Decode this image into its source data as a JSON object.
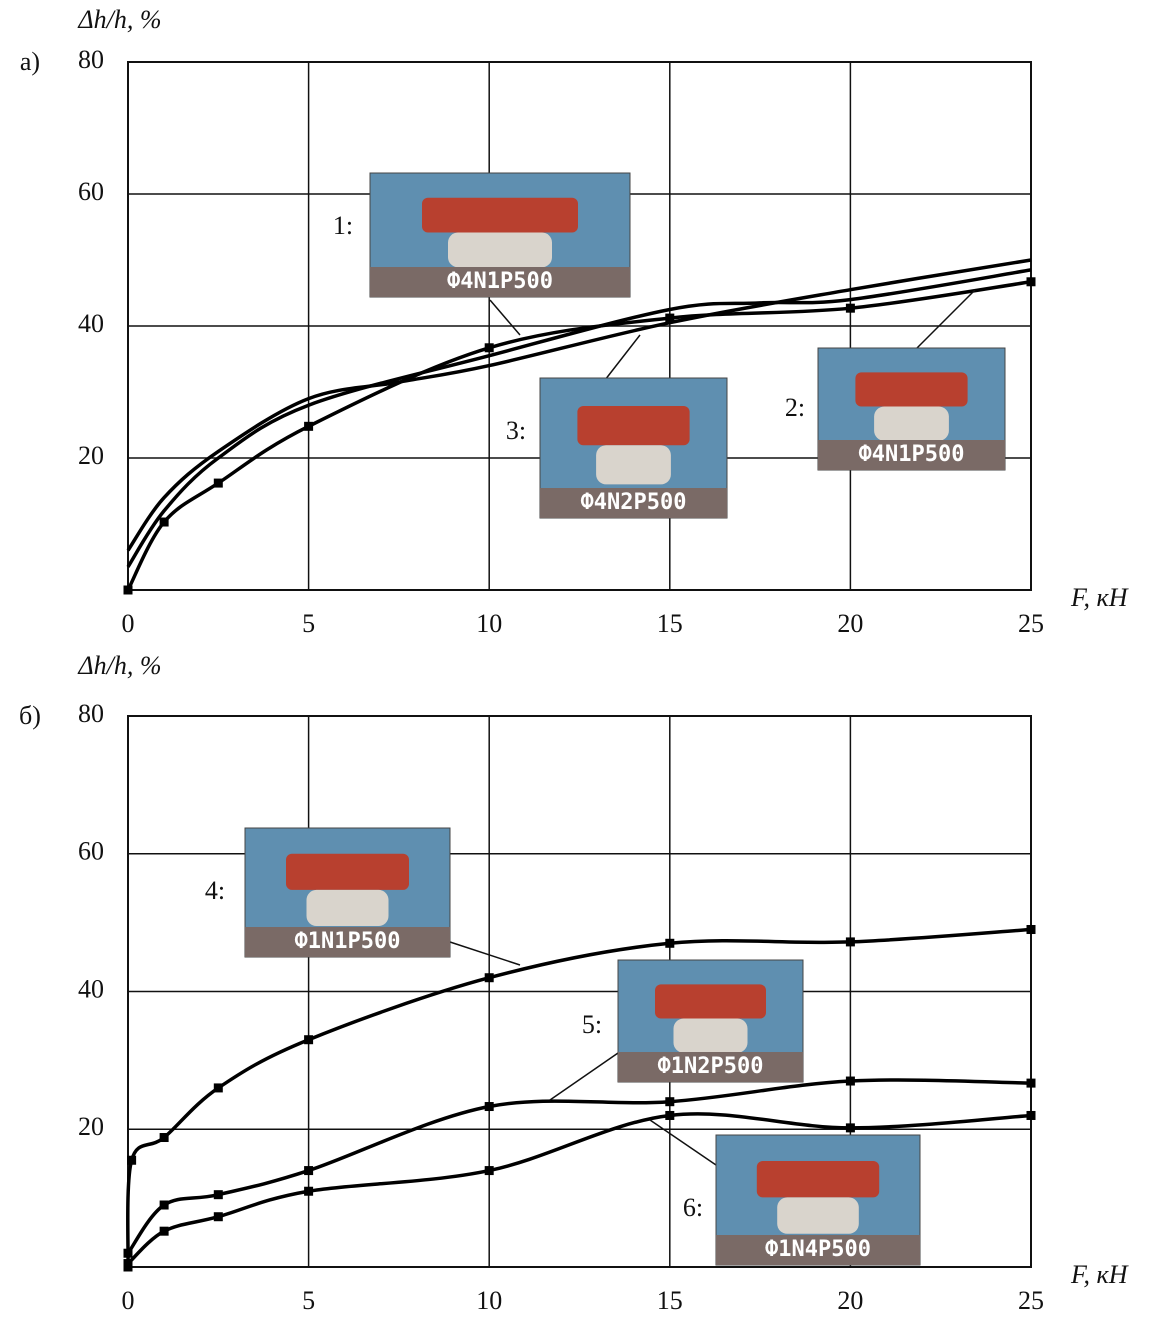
{
  "chart_data": [
    {
      "type": "line",
      "panel_label": "а)",
      "y_label": "Δh/h, %",
      "x_label": "F, кН",
      "xlim": [
        0,
        25
      ],
      "ylim": [
        0,
        80
      ],
      "xticks": [
        0,
        5,
        10,
        15,
        20,
        25
      ],
      "yticks": [
        20,
        40,
        60,
        80
      ],
      "grid": true,
      "series": [
        {
          "name": "1:",
          "caption": "Ф4N1P500",
          "color": "#000000",
          "markers": false,
          "x": [
            0,
            1,
            2.5,
            5,
            7.5,
            10,
            15,
            20,
            25
          ],
          "values": [
            6,
            14,
            21,
            29,
            31.5,
            34,
            40.5,
            45.5,
            50
          ]
        },
        {
          "name": "2:",
          "caption": "Ф4N1P500",
          "color": "#000000",
          "markers": true,
          "x": [
            0,
            1,
            2.5,
            5,
            10,
            15,
            20,
            25
          ],
          "values": [
            0,
            10.3,
            16.2,
            24.8,
            36.7,
            41.2,
            42.7,
            46.7
          ]
        },
        {
          "name": "3:",
          "caption": "Ф4N2P500",
          "color": "#000000",
          "markers": false,
          "x": [
            0,
            1,
            2.5,
            5,
            10,
            15,
            17.5,
            20,
            25
          ],
          "values": [
            3.5,
            12,
            20,
            28,
            35.5,
            42.5,
            43.5,
            44,
            48.5
          ]
        }
      ]
    },
    {
      "type": "line",
      "panel_label": "б)",
      "y_label": "Δh/h, %",
      "x_label": "F, кН",
      "xlim": [
        0,
        25
      ],
      "ylim": [
        0,
        80
      ],
      "xticks": [
        0,
        5,
        10,
        15,
        20,
        25
      ],
      "yticks": [
        20,
        40,
        60,
        80
      ],
      "grid": true,
      "series": [
        {
          "name": "4:",
          "caption": "Ф1N1P500",
          "color": "#000000",
          "markers": true,
          "x": [
            0,
            0.1,
            1,
            2.5,
            5,
            10,
            15,
            20,
            25
          ],
          "values": [
            0,
            15.5,
            18.8,
            26,
            33,
            42,
            47,
            47.2,
            49
          ]
        },
        {
          "name": "5:",
          "caption": "Ф1N2P500",
          "color": "#000000",
          "markers": true,
          "x": [
            0,
            1,
            2.5,
            5,
            10,
            15,
            20,
            25
          ],
          "values": [
            2,
            9,
            10.5,
            14,
            23.3,
            24,
            27,
            26.7
          ]
        },
        {
          "name": "6:",
          "caption": "Ф1N4P500",
          "color": "#000000",
          "markers": true,
          "x": [
            0,
            1,
            2.5,
            5,
            10,
            15,
            20,
            25
          ],
          "values": [
            0.5,
            5.2,
            7.3,
            11,
            14,
            22,
            20.2,
            22
          ]
        }
      ]
    }
  ]
}
